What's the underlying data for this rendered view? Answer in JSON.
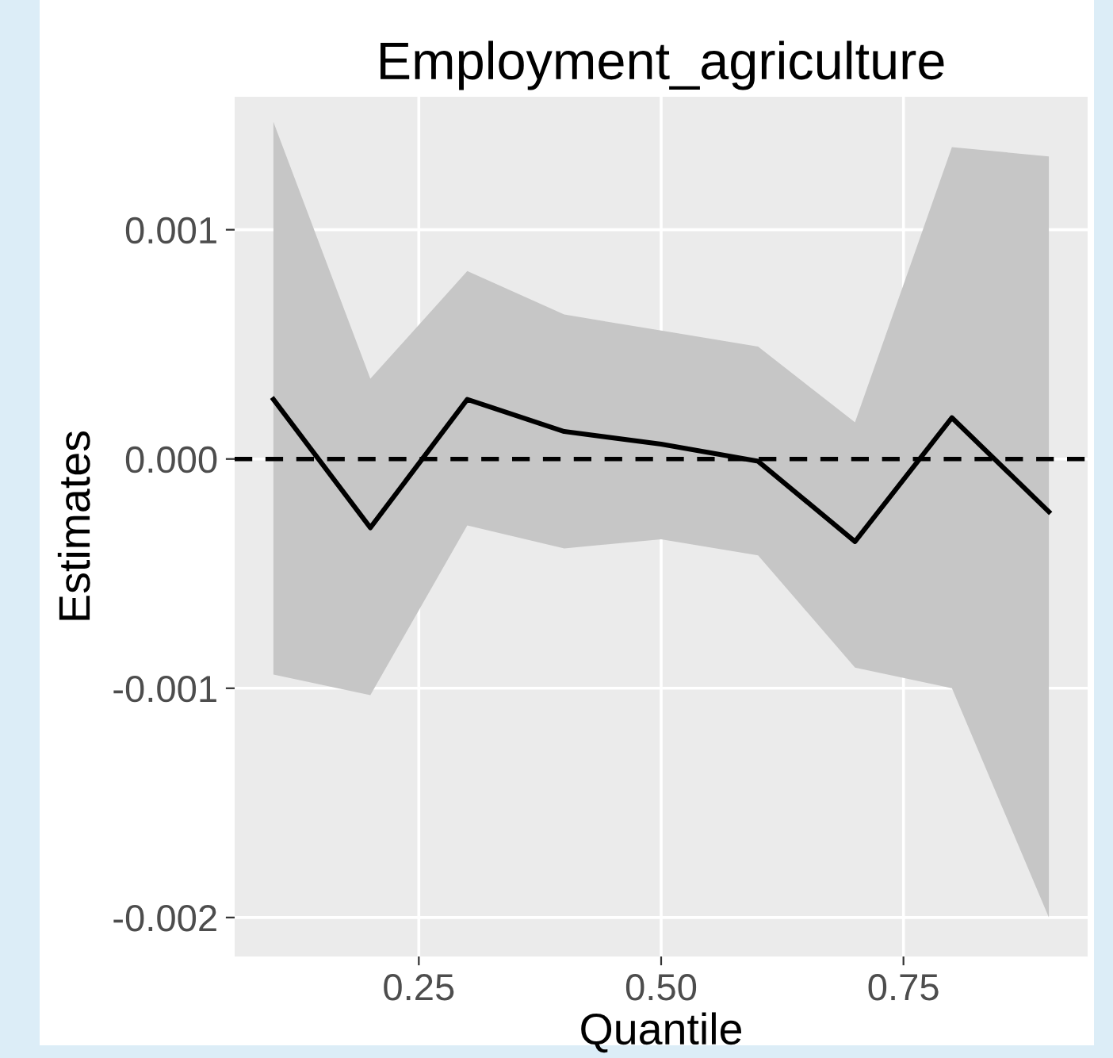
{
  "chart_data": {
    "type": "line",
    "title": "Employment_agriculture",
    "xlabel": "Quantile",
    "ylabel": "Estimates",
    "x": [
      0.1,
      0.2,
      0.3,
      0.4,
      0.5,
      0.6,
      0.7,
      0.8,
      0.9
    ],
    "series": [
      {
        "color": "#000000",
        "values": [
          0.00026,
          -0.0003,
          0.00026,
          0.00012,
          6.5e-05,
          -1e-05,
          -0.00036,
          0.00018,
          -0.00023
        ],
        "lower": [
          -0.00094,
          -0.00103,
          -0.00029,
          -0.00039,
          -0.00035,
          -0.00042,
          -0.00091,
          -0.001,
          -0.002
        ],
        "upper": [
          0.00147,
          0.00035,
          0.00082,
          0.00063,
          0.00056,
          0.00049,
          0.00016,
          0.00136,
          0.00132
        ]
      }
    ],
    "xlim": [
      0.06,
      0.94
    ],
    "ylim": [
      -0.00217,
      0.00158
    ],
    "xticks": [
      0.25,
      {
        "value": 0.5,
        "label": "0.50"
      },
      0.75
    ],
    "yticks": [
      {
        "value": -0.002,
        "label": "-0.002"
      },
      {
        "value": -0.001,
        "label": "-0.001"
      },
      {
        "value": 0.0,
        "label": "0.000"
      },
      0.001
    ],
    "ref_lines": [
      {
        "axis": "y",
        "value": 0,
        "color": "#000000",
        "line_style": "dashed"
      }
    ],
    "grid": true,
    "marker": "none",
    "line_style": "solid"
  }
}
